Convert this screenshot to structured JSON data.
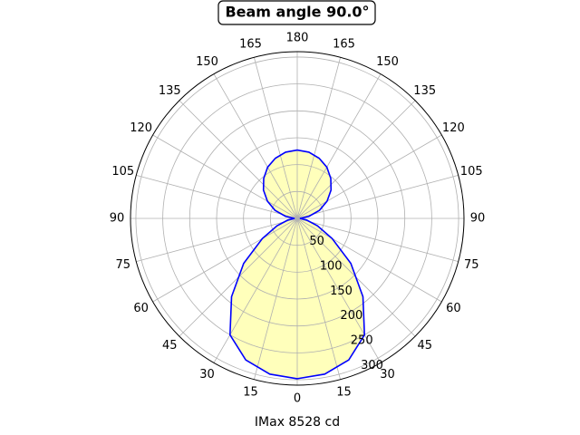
{
  "chart_data": {
    "type": "polar",
    "title": "Beam angle 90.0°",
    "xlabel": "IMax 8528 cd",
    "theta": [
      0,
      10,
      20,
      30,
      40,
      50,
      60,
      70,
      80,
      90,
      100,
      110,
      120,
      130,
      140,
      150,
      160,
      170,
      180,
      190,
      200,
      210,
      220,
      230,
      240,
      250,
      260,
      270,
      280,
      290,
      300,
      310,
      320,
      330,
      340,
      350
    ],
    "values": [
      298,
      294,
      280,
      250,
      190,
      130,
      75,
      40,
      18,
      5,
      22,
      44,
      64,
      82,
      97,
      110,
      119,
      125,
      127,
      125,
      119,
      110,
      97,
      82,
      64,
      44,
      22,
      5,
      18,
      40,
      75,
      130,
      190,
      250,
      280,
      294
    ],
    "color": "#0000ff",
    "fill_color": "#ffffbb",
    "rlim": [
      0,
      310
    ],
    "rticks": [
      50,
      100,
      150,
      200,
      250,
      300
    ],
    "thetaticks": [
      0,
      15,
      30,
      45,
      60,
      75,
      90,
      105,
      120,
      135,
      150,
      165,
      180,
      {
        "value": 195,
        "label": "165"
      },
      {
        "value": 210,
        "label": "150"
      },
      {
        "value": 225,
        "label": "135"
      },
      {
        "value": 240,
        "label": "120"
      },
      {
        "value": 255,
        "label": "105"
      },
      {
        "value": 270,
        "label": "90"
      },
      {
        "value": 285,
        "label": "75"
      },
      {
        "value": 300,
        "label": "60"
      },
      {
        "value": 315,
        "label": "45"
      },
      {
        "value": 330,
        "label": "30"
      },
      {
        "value": 345,
        "label": "15"
      }
    ],
    "grid": true
  }
}
